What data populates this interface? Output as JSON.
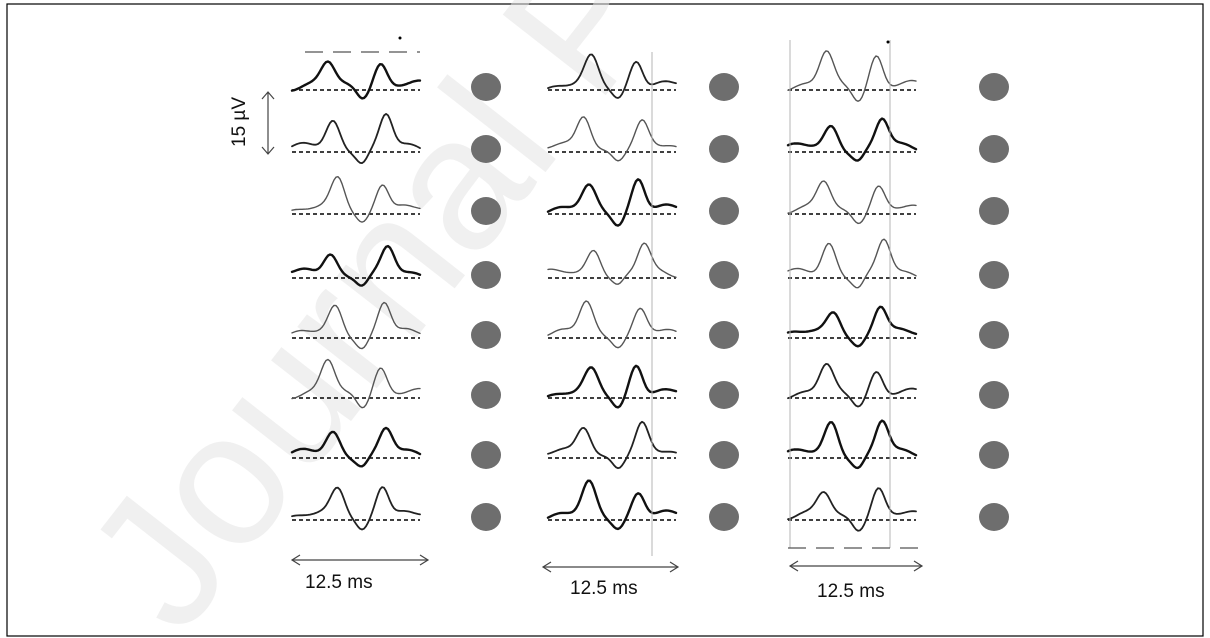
{
  "watermark": "Journal Pre-proof",
  "amplitude_scale": {
    "label": "15 µV"
  },
  "time_scales": [
    {
      "label": "12.5 ms"
    },
    {
      "label": "12.5 ms"
    },
    {
      "label": "12.5 ms"
    }
  ],
  "columns": 3,
  "rows_per_column": 8,
  "colors": {
    "marker": "#6e6e6e",
    "trace": "#111111",
    "watermark": "#e3e3e3"
  }
}
